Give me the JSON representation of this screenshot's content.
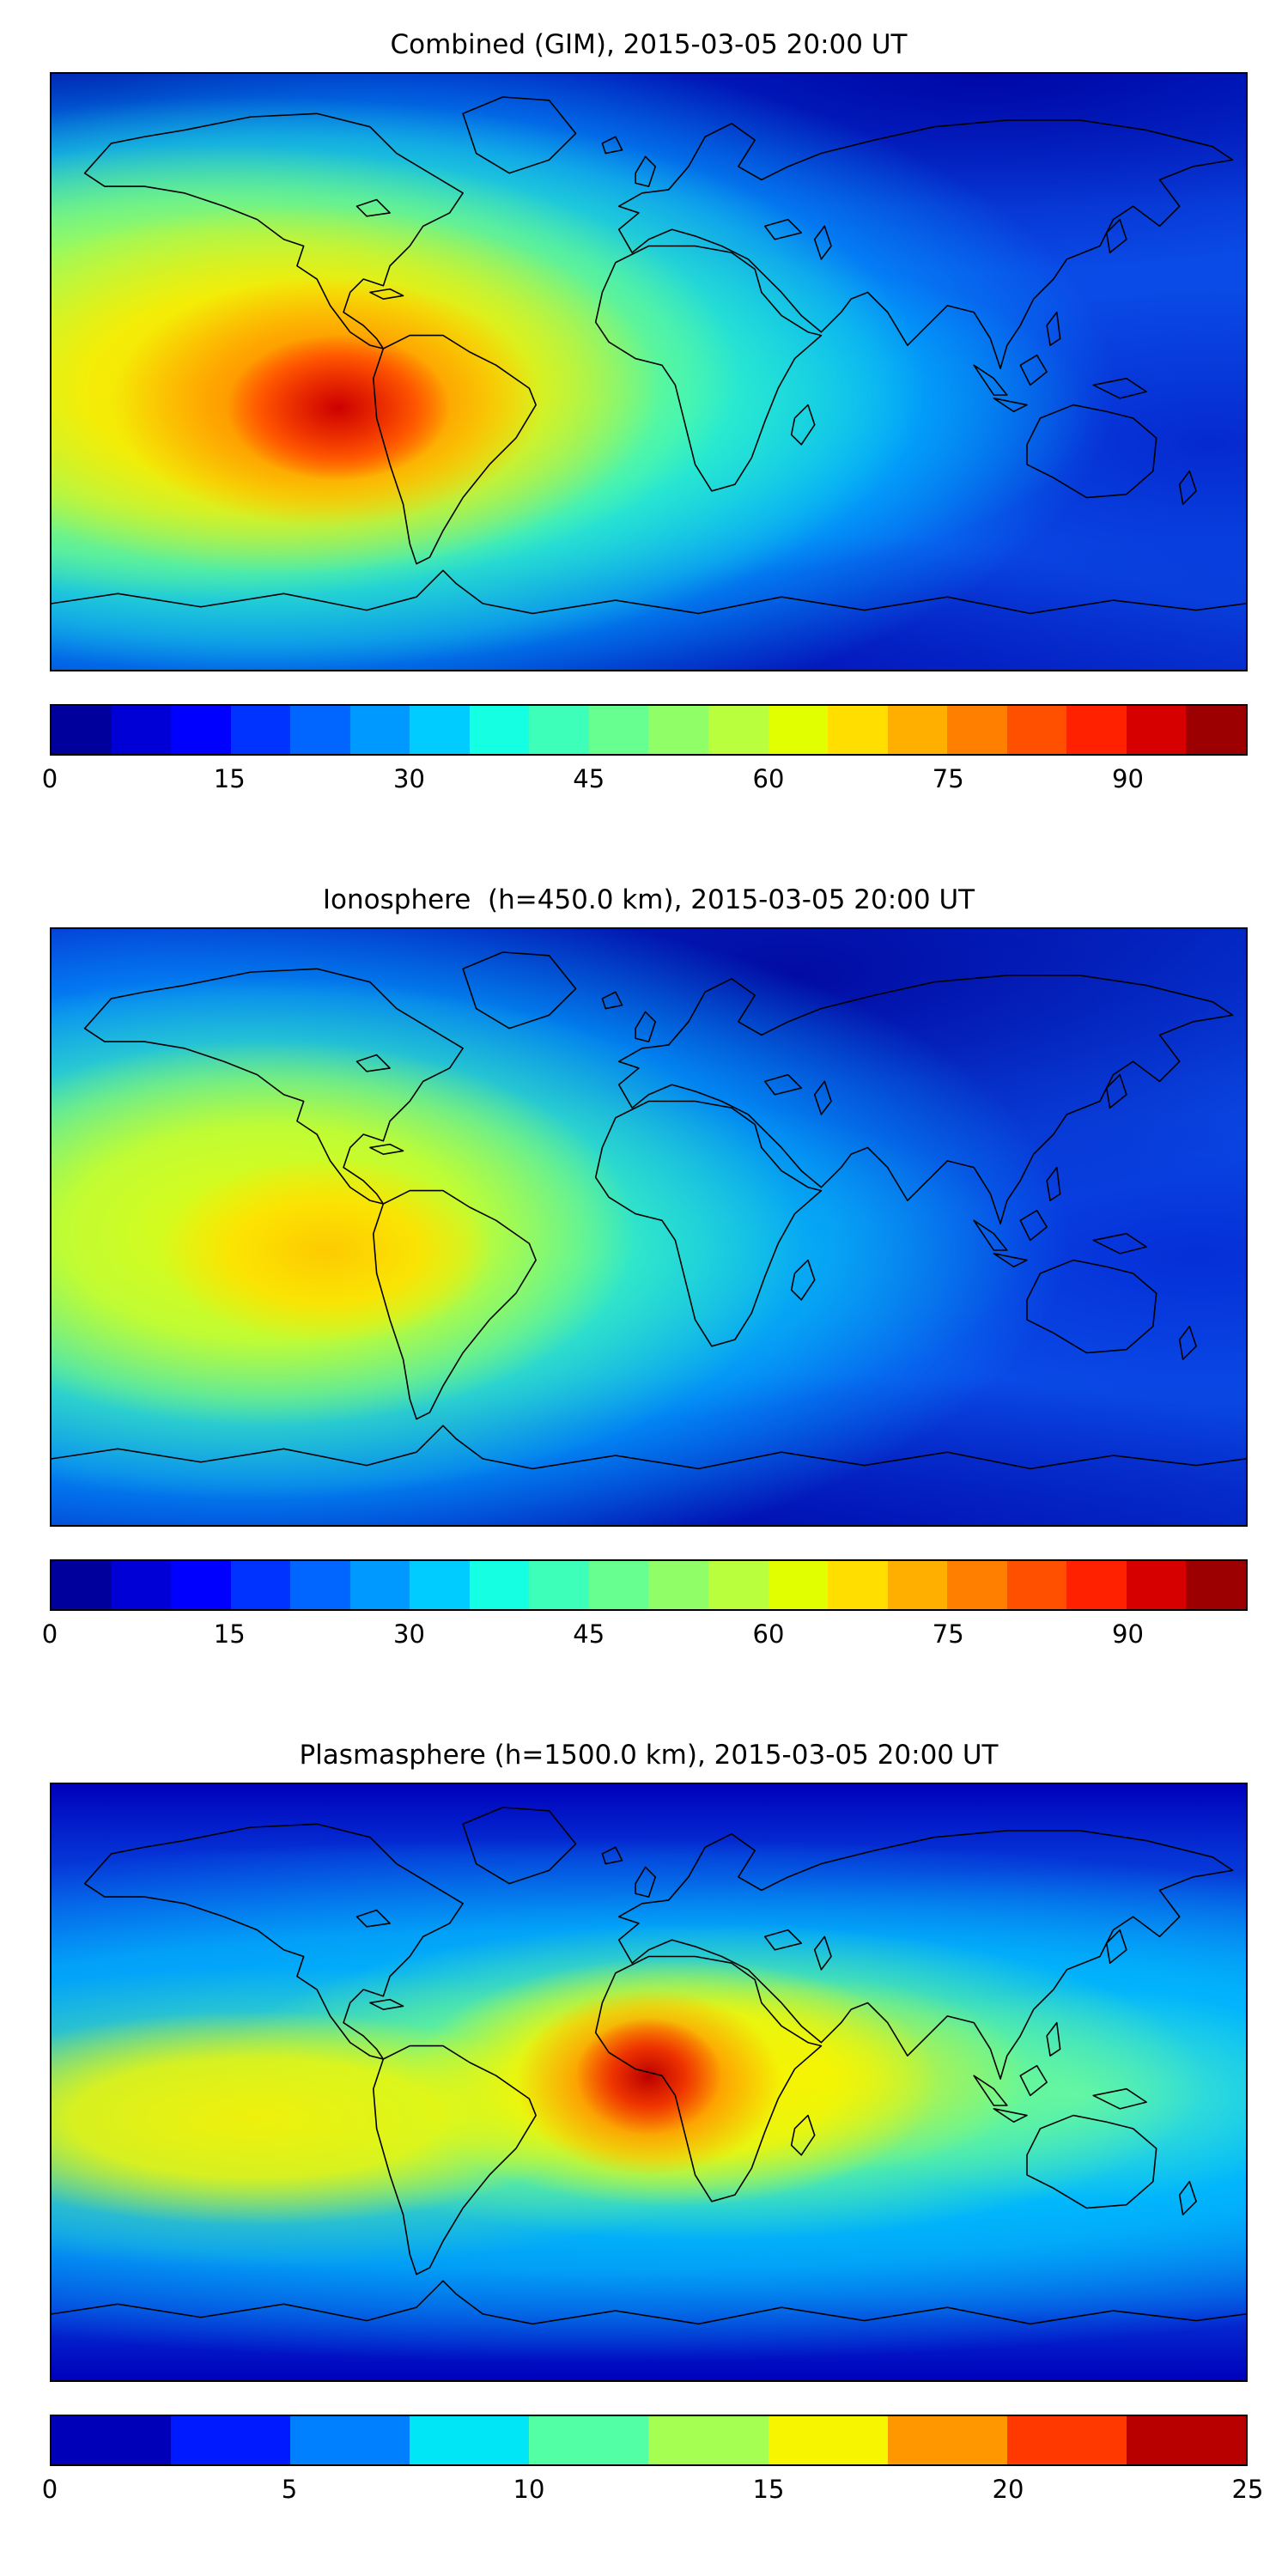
{
  "figure": {
    "background": "#ffffff",
    "description": "Three stacked global TEC contour maps with jet colorbars"
  },
  "chart_data": [
    {
      "type": "heatmap",
      "title": "Combined (GIM), 2015-03-05 20:00 UT",
      "timestamp": "2015-03-05 20:00 UT",
      "map_type": "global equirectangular map with black coastlines",
      "colormap": "jet",
      "value_range": [
        0,
        100
      ],
      "colorbar_ticks": [
        "0",
        "15",
        "30",
        "45",
        "60",
        "75",
        "90"
      ],
      "tick_positions": [
        0,
        0.15,
        0.3,
        0.45,
        0.6,
        0.75,
        0.9
      ],
      "colorbar_colors": [
        "#00009D",
        "#0000D6",
        "#0000FF",
        "#0033FF",
        "#0066FF",
        "#0099FF",
        "#00CCFF",
        "#15FFE2",
        "#3EFFB9",
        "#67FF90",
        "#90FF67",
        "#B9FF3E",
        "#E2FF00",
        "#FFDE00",
        "#FFAF00",
        "#FF8000",
        "#FF5000",
        "#FF2100",
        "#D60000",
        "#9D0000"
      ],
      "maximum": {
        "description": "red-orange maximum over northwestern South America and eastern Pacific",
        "approx_value": 95
      },
      "background_level": {
        "description": "blue background over high latitudes, Europe, Asia and poles",
        "approx_value": 15
      }
    },
    {
      "type": "heatmap",
      "title": "Ionosphere  (h=450.0 km), 2015-03-05 20:00 UT",
      "timestamp": "2015-03-05 20:00 UT",
      "height_label": "h=450.0 km",
      "map_type": "global equirectangular map with black coastlines",
      "colormap": "jet",
      "value_range": [
        0,
        100
      ],
      "colorbar_ticks": [
        "0",
        "15",
        "30",
        "45",
        "60",
        "75",
        "90"
      ],
      "tick_positions": [
        0,
        0.15,
        0.3,
        0.45,
        0.6,
        0.75,
        0.9
      ],
      "colorbar_colors": [
        "#00009D",
        "#0000D6",
        "#0000FF",
        "#0033FF",
        "#0066FF",
        "#0099FF",
        "#00CCFF",
        "#15FFE2",
        "#3EFFB9",
        "#67FF90",
        "#90FF67",
        "#B9FF3E",
        "#E2FF00",
        "#FFDE00",
        "#FFAF00",
        "#FF8000",
        "#FF5000",
        "#FF2100",
        "#D60000",
        "#9D0000"
      ],
      "maximum": {
        "description": "yellow maximum over western South America and eastern Pacific",
        "approx_value": 70
      },
      "background_level": {
        "description": "dark blue minimum over Europe and Russia",
        "approx_value": 8
      }
    },
    {
      "type": "heatmap",
      "title": "Plasmasphere (h=1500.0 km), 2015-03-05 20:00 UT",
      "timestamp": "2015-03-05 20:00 UT",
      "height_label": "h=1500.0 km",
      "map_type": "global equirectangular map with black coastlines",
      "colormap": "jet",
      "value_range": [
        0,
        25
      ],
      "colorbar_ticks": [
        "0",
        "5",
        "10",
        "15",
        "20",
        "25"
      ],
      "tick_positions": [
        0,
        0.2,
        0.4,
        0.6,
        0.8,
        1.0
      ],
      "colorbar_colors": [
        "#0000B9",
        "#001AFF",
        "#0080FF",
        "#00E6F7",
        "#52FFA5",
        "#A5FF52",
        "#F7F600",
        "#FF9700",
        "#FF3900",
        "#B90000"
      ],
      "maximum": {
        "description": "red maximum over central-west Africa within an equatorial yellow-green band",
        "approx_value": 24
      },
      "background_level": {
        "description": "dark blue at high latitudes north and south",
        "approx_value": 3
      }
    }
  ]
}
